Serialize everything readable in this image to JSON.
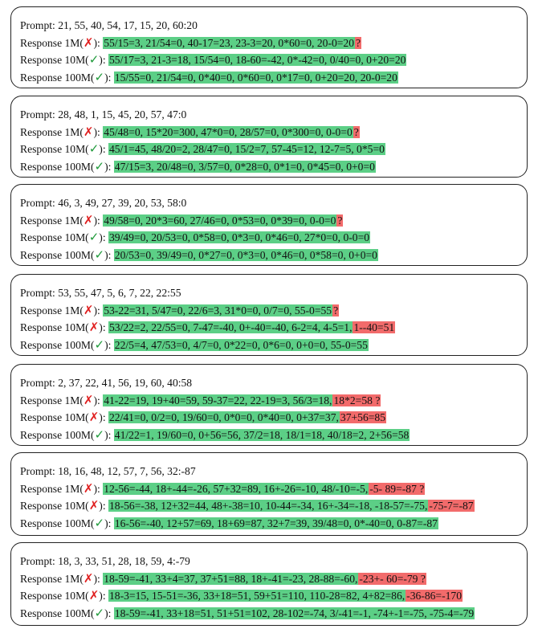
{
  "colors": {
    "correct_highlight": "#5ccf86",
    "error_highlight": "#f26b6b",
    "check_mark": "#1f9a3a",
    "cross_mark": "#e02020"
  },
  "panels": [
    {
      "prompt": "Prompt: 21, 55, 40, 54, 17, 15, 20, 60:20",
      "responses": [
        {
          "label": "Response 1M(",
          "mark": "✗",
          "ok": false,
          "segments": [
            {
              "text": "55/15=3, 21/54=0, 40-17=23, 23-3=20, 0*60=0, 20-0=20",
              "type": "g"
            },
            {
              "text": "?",
              "type": "r"
            }
          ]
        },
        {
          "label": "Response 10M(",
          "mark": "✓",
          "ok": true,
          "segments": [
            {
              "text": "55/17=3, 21-3=18, 15/54=0, 18-60=-42, 0*-42=0, 0/40=0, 0+20=20",
              "type": "g"
            }
          ]
        },
        {
          "label": "Response 100M(",
          "mark": "✓",
          "ok": true,
          "segments": [
            {
              "text": "15/55=0, 21/54=0, 0*40=0, 0*60=0, 0*17=0, 0+20=20, 20-0=20",
              "type": "g"
            }
          ]
        }
      ]
    },
    {
      "prompt": "Prompt: 28, 48, 1, 15, 45, 20, 57, 47:0",
      "responses": [
        {
          "label": "Response 1M(",
          "mark": "✗",
          "ok": false,
          "segments": [
            {
              "text": "45/48=0, 15*20=300, 47*0=0, 28/57=0, 0*300=0, 0-0=0",
              "type": "g"
            },
            {
              "text": "?",
              "type": "r"
            }
          ]
        },
        {
          "label": "Response 10M(",
          "mark": "✓",
          "ok": true,
          "segments": [
            {
              "text": "45/1=45, 48/20=2, 28/47=0, 15/2=7, 57-45=12, 12-7=5, 0*5=0",
              "type": "g"
            }
          ]
        },
        {
          "label": "Response 100M(",
          "mark": "✓",
          "ok": true,
          "segments": [
            {
              "text": "47/15=3, 20/48=0, 3/57=0, 0*28=0, 0*1=0, 0*45=0, 0+0=0",
              "type": "g"
            }
          ]
        }
      ]
    },
    {
      "prompt": "Prompt: 46, 3, 49, 27, 39, 20, 53, 58:0",
      "responses": [
        {
          "label": "Response 1M(",
          "mark": "✗",
          "ok": false,
          "segments": [
            {
              "text": "49/58=0, 20*3=60, 27/46=0, 0*53=0, 0*39=0, 0-0=0",
              "type": "g"
            },
            {
              "text": "?",
              "type": "r"
            }
          ]
        },
        {
          "label": "Response 10M(",
          "mark": "✓",
          "ok": true,
          "segments": [
            {
              "text": "39/49=0, 20/53=0, 0*58=0, 0*3=0, 0*46=0, 27*0=0, 0-0=0",
              "type": "g"
            }
          ]
        },
        {
          "label": "Response 100M(",
          "mark": "✓",
          "ok": true,
          "segments": [
            {
              "text": "20/53=0, 39/49=0, 0*27=0, 0*3=0, 0*46=0, 0*58=0, 0+0=0",
              "type": "g"
            }
          ]
        }
      ]
    },
    {
      "prompt": "Prompt: 53, 55, 47, 5, 6, 7, 22, 22:55",
      "responses": [
        {
          "label": "Response 1M(",
          "mark": "✗",
          "ok": false,
          "segments": [
            {
              "text": "53-22=31, 5/47=0, 22/6=3, 31*0=0, 0/7=0, 55-0=55",
              "type": "g"
            },
            {
              "text": "?",
              "type": "r"
            }
          ]
        },
        {
          "label": "Response 10M(",
          "mark": "✗",
          "ok": false,
          "segments": [
            {
              "text": "53/22=2, 22/55=0, 7-47=-40, 0+-40=-40, 6-2=4, 4-5=1,",
              "type": "g"
            },
            {
              "text": "1--40=51",
              "type": "r"
            }
          ]
        },
        {
          "label": "Response 100M(",
          "mark": "✓",
          "ok": true,
          "segments": [
            {
              "text": "22/5=4, 47/53=0, 4/7=0, 0*22=0, 0*6=0, 0+0=0, 55-0=55",
              "type": "g"
            }
          ]
        }
      ]
    },
    {
      "prompt": "Prompt: 2, 37, 22, 41, 56, 19, 60, 40:58",
      "responses": [
        {
          "label": "Response 1M(",
          "mark": "✗",
          "ok": false,
          "segments": [
            {
              "text": "41-22=19, 19+40=59, 59-37=22, 22-19=3, 56/3=18,",
              "type": "g"
            },
            {
              "text": "18*2=58 ?",
              "type": "r"
            }
          ]
        },
        {
          "label": "Response 10M(",
          "mark": "✗",
          "ok": false,
          "segments": [
            {
              "text": "22/41=0, 0/2=0, 19/60=0, 0*0=0, 0*40=0, 0+37=37,",
              "type": "g"
            },
            {
              "text": "37+56=85",
              "type": "r"
            }
          ]
        },
        {
          "label": "Response 100M(",
          "mark": "✓",
          "ok": true,
          "segments": [
            {
              "text": "41/22=1, 19/60=0, 0+56=56, 37/2=18, 18/1=18, 40/18=2, 2+56=58",
              "type": "g"
            }
          ]
        }
      ]
    },
    {
      "prompt": "Prompt: 18, 16, 48, 12, 57, 7, 56, 32:-87",
      "responses": [
        {
          "label": "Response 1M(",
          "mark": "✗",
          "ok": false,
          "segments": [
            {
              "text": "12-56=-44, 18+-44=-26, 57+32=89, 16+-26=-10, 48/-10=-5,",
              "type": "g"
            },
            {
              "text": "-5- 89=-87 ?",
              "type": "r"
            }
          ]
        },
        {
          "label": "Response 10M(",
          "mark": "✗",
          "ok": false,
          "segments": [
            {
              "text": "18-56=-38, 12+32=44, 48+-38=10, 10-44=-34, 16+-34=-18, -18-57=-75,",
              "type": "g"
            },
            {
              "text": "-75-7=-87",
              "type": "r"
            }
          ]
        },
        {
          "label": "Response 100M(",
          "mark": "✓",
          "ok": true,
          "segments": [
            {
              "text": "16-56=-40, 12+57=69, 18+69=87, 32+7=39, 39/48=0, 0*-40=0, 0-87=-87",
              "type": "g"
            }
          ]
        }
      ]
    },
    {
      "prompt": "Prompt: 18, 3, 33, 51, 28, 18, 59, 4:-79",
      "responses": [
        {
          "label": "Response 1M(",
          "mark": "✗",
          "ok": false,
          "segments": [
            {
              "text": "18-59=-41, 33+4=37, 37+51=88, 18+-41=-23, 28-88=-60,",
              "type": "g"
            },
            {
              "text": "-23+- 60=-79 ?",
              "type": "r"
            }
          ]
        },
        {
          "label": "Response 10M(",
          "mark": "✗",
          "ok": false,
          "segments": [
            {
              "text": "18-3=15, 15-51=-36, 33+18=51, 59+51=110, 110-28=82, 4+82=86,",
              "type": "g"
            },
            {
              "text": "-36-86=-170",
              "type": "r"
            }
          ]
        },
        {
          "label": "Response 100M(",
          "mark": "✓",
          "ok": true,
          "segments": [
            {
              "text": "18-59=-41, 33+18=51, 51+51=102, 28-102=-74, 3/-41=-1, -74+-1=-75, -75-4=-79",
              "type": "g"
            }
          ]
        }
      ]
    }
  ]
}
